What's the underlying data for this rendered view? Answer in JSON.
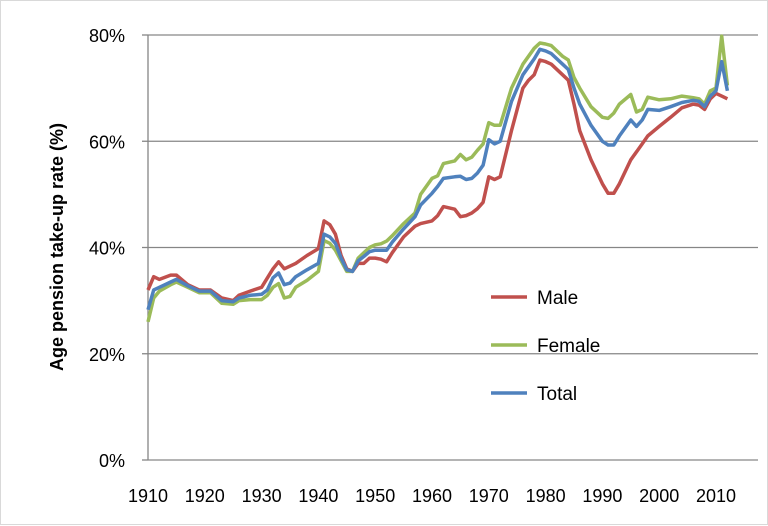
{
  "chart_data": {
    "type": "line",
    "title": "",
    "xlabel": "",
    "ylabel": "Age pension take-up rate (%)",
    "xlim": [
      1910,
      2017
    ],
    "ylim": [
      0,
      80
    ],
    "x_ticks": [
      "1910",
      "1920",
      "1930",
      "1940",
      "1950",
      "1960",
      "1970",
      "1980",
      "1990",
      "2000",
      "2010"
    ],
    "y_ticks": [
      "0%",
      "20%",
      "40%",
      "60%",
      "80%"
    ],
    "grid": "horizontal",
    "legend": "center-right",
    "series": [
      {
        "name": "Male",
        "color": "#c0504d",
        "x": [
          1910,
          1911,
          1912,
          1914,
          1915,
          1917,
          1919,
          1921,
          1923,
          1925,
          1926,
          1928,
          1930,
          1932,
          1933,
          1934,
          1936,
          1938,
          1940,
          1941,
          1942,
          1943,
          1944,
          1945,
          1946,
          1947,
          1948,
          1949,
          1950,
          1951,
          1952,
          1953,
          1955,
          1957,
          1958,
          1960,
          1961,
          1962,
          1964,
          1965,
          1966,
          1967,
          1968,
          1969,
          1970,
          1971,
          1972,
          1974,
          1976,
          1977,
          1978,
          1979,
          1980,
          1981,
          1983,
          1984,
          1985,
          1986,
          1988,
          1990,
          1991,
          1992,
          1993,
          1995,
          1997,
          1998,
          2000,
          2002,
          2004,
          2006,
          2007,
          2008,
          2009,
          2010,
          2011,
          2012
        ],
        "values": [
          32,
          34.5,
          34,
          34.8,
          34.8,
          33,
          32,
          32,
          30.5,
          30,
          31,
          31.8,
          32.5,
          36,
          37.3,
          36,
          37,
          38.5,
          39.8,
          45,
          44.3,
          42.5,
          38.5,
          36,
          35.5,
          37,
          37,
          38,
          38,
          37.8,
          37.3,
          39,
          42,
          44,
          44.5,
          45,
          46,
          47.7,
          47.2,
          45.8,
          46,
          46.5,
          47.3,
          48.5,
          53.3,
          52.8,
          53.3,
          62,
          70,
          71.5,
          72.5,
          75.3,
          75,
          74.5,
          72.5,
          71.5,
          67,
          62,
          56.5,
          52,
          50.2,
          50.2,
          52,
          56.5,
          59.5,
          61,
          62.8,
          64.5,
          66.3,
          67,
          66.8,
          66,
          68,
          69,
          68.5,
          68
        ]
      },
      {
        "name": "Female",
        "color": "#9bbb59",
        "x": [
          1910,
          1911,
          1912,
          1914,
          1915,
          1917,
          1919,
          1921,
          1923,
          1925,
          1926,
          1928,
          1930,
          1931,
          1932,
          1933,
          1934,
          1935,
          1936,
          1938,
          1940,
          1941,
          1942,
          1943,
          1944,
          1945,
          1946,
          1947,
          1948,
          1949,
          1950,
          1951,
          1952,
          1953,
          1955,
          1957,
          1958,
          1960,
          1961,
          1962,
          1964,
          1965,
          1966,
          1967,
          1968,
          1969,
          1970,
          1971,
          1972,
          1974,
          1976,
          1978,
          1979,
          1980,
          1981,
          1983,
          1984,
          1985,
          1986,
          1988,
          1990,
          1991,
          1992,
          1993,
          1995,
          1996,
          1997,
          1998,
          2000,
          2002,
          2004,
          2006,
          2007,
          2008,
          2009,
          2010,
          2011,
          2012
        ],
        "values": [
          26,
          30.5,
          31.8,
          33,
          33.5,
          32.5,
          31.5,
          31.5,
          29.5,
          29.3,
          30,
          30.2,
          30.2,
          31,
          32.5,
          33.2,
          30.5,
          30.8,
          32.5,
          33.8,
          35.5,
          41.3,
          40.8,
          39.5,
          37.5,
          35.5,
          35.5,
          38,
          39,
          40,
          40.5,
          40.7,
          41.2,
          42.2,
          44.5,
          46.5,
          50,
          53,
          53.5,
          55.8,
          56.3,
          57.5,
          56.5,
          57,
          58.3,
          59.5,
          63.5,
          63,
          63,
          70,
          74.5,
          77.5,
          78.5,
          78.3,
          78,
          76,
          75.3,
          72,
          70,
          66.5,
          64.5,
          64.3,
          65.3,
          67,
          68.8,
          65.5,
          66,
          68.3,
          67.8,
          68,
          68.5,
          68.2,
          68,
          67,
          69.5,
          70,
          79.8,
          70.5
        ]
      },
      {
        "name": "Total",
        "color": "#4f81bd",
        "x": [
          1910,
          1911,
          1912,
          1914,
          1915,
          1917,
          1919,
          1921,
          1923,
          1925,
          1926,
          1928,
          1930,
          1931,
          1932,
          1933,
          1934,
          1935,
          1936,
          1938,
          1940,
          1941,
          1942,
          1943,
          1944,
          1945,
          1946,
          1947,
          1948,
          1949,
          1950,
          1951,
          1952,
          1953,
          1955,
          1957,
          1958,
          1960,
          1961,
          1962,
          1964,
          1965,
          1966,
          1967,
          1968,
          1969,
          1970,
          1971,
          1972,
          1974,
          1976,
          1978,
          1979,
          1980,
          1981,
          1983,
          1984,
          1985,
          1986,
          1988,
          1990,
          1991,
          1992,
          1993,
          1995,
          1996,
          1997,
          1998,
          2000,
          2002,
          2004,
          2006,
          2007,
          2008,
          2009,
          2010,
          2011,
          2012
        ],
        "values": [
          28.3,
          32,
          32.5,
          33.5,
          34,
          32.8,
          31.8,
          31.8,
          30,
          29.8,
          30.5,
          31,
          31.2,
          32,
          34.3,
          35.2,
          33,
          33.3,
          34.5,
          35.8,
          37,
          42.5,
          42,
          40.8,
          38,
          35.8,
          35.5,
          37.5,
          38.3,
          39.2,
          39.5,
          39.5,
          39.5,
          41,
          43.5,
          45.8,
          48,
          50.2,
          51.5,
          53,
          53.3,
          53.4,
          52.8,
          53,
          54,
          55.5,
          60.3,
          59.5,
          60,
          67.5,
          72.5,
          75.5,
          77.3,
          77,
          76.5,
          74.5,
          73.5,
          70,
          67,
          63,
          60,
          59.3,
          59.3,
          61,
          64,
          62.8,
          64,
          66,
          65.8,
          66.5,
          67.3,
          67.7,
          67.5,
          66.5,
          68.5,
          69.5,
          75,
          69.5
        ]
      }
    ]
  }
}
